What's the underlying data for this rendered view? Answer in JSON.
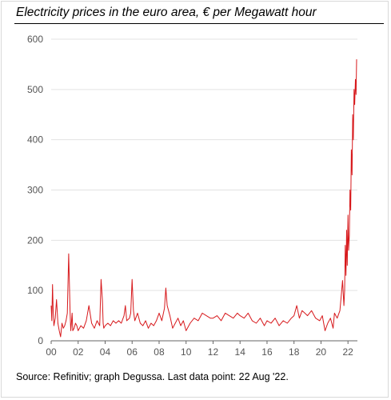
{
  "chart_data": {
    "type": "line",
    "title": "Electricity prices in the euro area, € per Megawatt hour",
    "xlabel": "",
    "ylabel": "",
    "xlim": [
      2000,
      2022.7
    ],
    "ylim": [
      0,
      600
    ],
    "y_ticks": [
      0,
      100,
      200,
      300,
      400,
      500,
      600
    ],
    "x_ticks": [
      {
        "value": 2000,
        "label": "00"
      },
      {
        "value": 2002,
        "label": "02"
      },
      {
        "value": 2004,
        "label": "04"
      },
      {
        "value": 2006,
        "label": "06"
      },
      {
        "value": 2008,
        "label": "08"
      },
      {
        "value": 2010,
        "label": "10"
      },
      {
        "value": 2012,
        "label": "12"
      },
      {
        "value": 2014,
        "label": "14"
      },
      {
        "value": 2016,
        "label": "16"
      },
      {
        "value": 2018,
        "label": "18"
      },
      {
        "value": 2020,
        "label": "20"
      },
      {
        "value": 2022,
        "label": "22"
      }
    ],
    "grid": "horizontal",
    "line_color": "#d7191c",
    "series": [
      {
        "x": [
          2000.0,
          2000.05,
          2000.1,
          2000.15,
          2000.2,
          2000.3,
          2000.4,
          2000.5,
          2000.6,
          2000.7,
          2000.8,
          2000.9,
          2001.0,
          2001.1,
          2001.2,
          2001.3,
          2001.4,
          2001.45,
          2001.5,
          2001.55,
          2001.6,
          2001.7,
          2001.8,
          2001.9,
          2002.0,
          2002.2,
          2002.4,
          2002.6,
          2002.8,
          2003.0,
          2003.2,
          2003.4,
          2003.6,
          2003.7,
          2003.8,
          2003.85,
          2003.9,
          2004.0,
          2004.2,
          2004.4,
          2004.6,
          2004.8,
          2005.0,
          2005.2,
          2005.4,
          2005.5,
          2005.6,
          2005.8,
          2005.9,
          2006.0,
          2006.1,
          2006.2,
          2006.4,
          2006.6,
          2006.8,
          2007.0,
          2007.2,
          2007.4,
          2007.6,
          2007.8,
          2008.0,
          2008.2,
          2008.4,
          2008.5,
          2008.6,
          2008.8,
          2009.0,
          2009.2,
          2009.4,
          2009.6,
          2009.8,
          2010.0,
          2010.3,
          2010.6,
          2010.9,
          2011.2,
          2011.5,
          2011.8,
          2012.0,
          2012.3,
          2012.6,
          2012.9,
          2013.2,
          2013.5,
          2013.8,
          2014.0,
          2014.3,
          2014.6,
          2014.9,
          2015.2,
          2015.5,
          2015.8,
          2016.0,
          2016.3,
          2016.6,
          2016.9,
          2017.2,
          2017.5,
          2017.8,
          2018.0,
          2018.2,
          2018.4,
          2018.6,
          2018.8,
          2019.0,
          2019.3,
          2019.6,
          2019.9,
          2020.1,
          2020.3,
          2020.5,
          2020.7,
          2020.9,
          2021.0,
          2021.2,
          2021.4,
          2021.5,
          2021.6,
          2021.7,
          2021.75,
          2021.8,
          2021.85,
          2021.9,
          2021.95,
          2022.0,
          2022.05,
          2022.1,
          2022.15,
          2022.2,
          2022.25,
          2022.3,
          2022.35,
          2022.4,
          2022.45,
          2022.5,
          2022.55,
          2022.6,
          2022.64
        ],
        "y": [
          70,
          40,
          112,
          60,
          30,
          45,
          82,
          35,
          20,
          8,
          35,
          25,
          30,
          40,
          55,
          173,
          60,
          20,
          35,
          55,
          20,
          25,
          35,
          30,
          20,
          30,
          25,
          40,
          70,
          35,
          25,
          40,
          30,
          122,
          80,
          35,
          25,
          30,
          35,
          30,
          40,
          35,
          40,
          35,
          50,
          70,
          40,
          45,
          55,
          122,
          60,
          40,
          55,
          35,
          30,
          40,
          25,
          35,
          30,
          40,
          55,
          40,
          65,
          105,
          70,
          50,
          25,
          35,
          45,
          30,
          40,
          20,
          35,
          45,
          40,
          55,
          50,
          45,
          45,
          50,
          40,
          55,
          50,
          45,
          55,
          50,
          45,
          55,
          40,
          35,
          45,
          30,
          40,
          35,
          45,
          30,
          40,
          35,
          45,
          50,
          70,
          45,
          60,
          55,
          50,
          60,
          45,
          40,
          50,
          20,
          35,
          45,
          25,
          55,
          45,
          60,
          90,
          120,
          70,
          100,
          190,
          130,
          220,
          150,
          250,
          180,
          210,
          300,
          260,
          380,
          330,
          450,
          400,
          500,
          470,
          520,
          490,
          560
        ]
      }
    ],
    "source_note": "Source: Refinitiv; graph Degussa. Last data point: 22 Aug '22."
  }
}
